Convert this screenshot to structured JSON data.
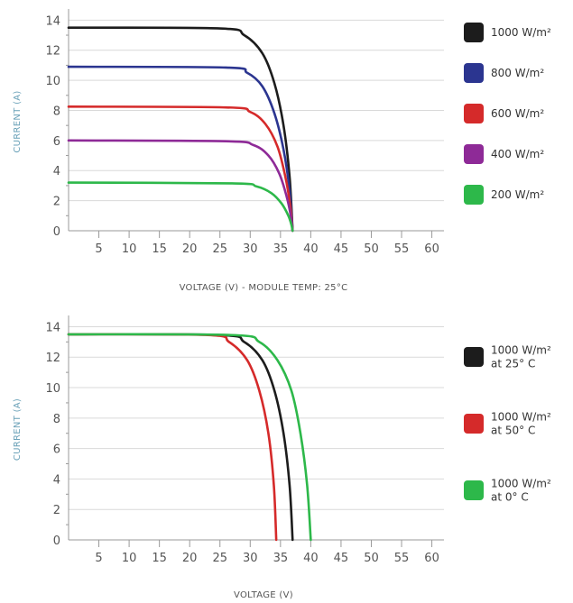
{
  "chart_data": [
    {
      "type": "line",
      "title": "",
      "xlabel": "VOLTAGE (V) - MODULE TEMP: 25°C",
      "ylabel": "CURRENT (A)",
      "xlim": [
        0,
        62
      ],
      "ylim": [
        0,
        14.5
      ],
      "xticks": [
        5,
        10,
        15,
        20,
        25,
        30,
        35,
        40,
        45,
        50,
        55,
        60
      ],
      "yticks": [
        0,
        2,
        4,
        6,
        8,
        10,
        12,
        14
      ],
      "grid": "horizontal",
      "legend_position": "right",
      "series": [
        {
          "name": "1000 W/m²",
          "color": "#1c1c1c",
          "isc": 13.5,
          "voc": 37.0,
          "points": [
            [
              0,
              13.5
            ],
            [
              25,
              13.45
            ],
            [
              29,
              13.0
            ],
            [
              32,
              11.8
            ],
            [
              34,
              9.8
            ],
            [
              35.5,
              7.0
            ],
            [
              36.5,
              3.6
            ],
            [
              37.0,
              0
            ]
          ]
        },
        {
          "name": "800 W/m²",
          "color": "#2b3590",
          "isc": 10.9,
          "voc": 37.0,
          "points": [
            [
              0,
              10.9
            ],
            [
              26,
              10.85
            ],
            [
              29.5,
              10.5
            ],
            [
              32,
              9.6
            ],
            [
              34,
              7.8
            ],
            [
              35.5,
              5.4
            ],
            [
              36.5,
              2.7
            ],
            [
              37.0,
              0
            ]
          ]
        },
        {
          "name": "600 W/m²",
          "color": "#d52a2a",
          "isc": 8.25,
          "voc": 37.0,
          "points": [
            [
              0,
              8.25
            ],
            [
              26,
              8.2
            ],
            [
              30,
              7.9
            ],
            [
              32.5,
              7.1
            ],
            [
              34.5,
              5.6
            ],
            [
              35.8,
              3.6
            ],
            [
              36.6,
              1.7
            ],
            [
              37.0,
              0
            ]
          ]
        },
        {
          "name": "400 W/m²",
          "color": "#8e2a97",
          "isc": 6.0,
          "voc": 37.0,
          "points": [
            [
              0,
              6.0
            ],
            [
              26,
              5.95
            ],
            [
              30.5,
              5.7
            ],
            [
              33,
              5.0
            ],
            [
              34.8,
              3.8
            ],
            [
              36,
              2.3
            ],
            [
              36.7,
              1.0
            ],
            [
              37.0,
              0
            ]
          ]
        },
        {
          "name": "200 W/m²",
          "color": "#2db84a",
          "isc": 3.2,
          "voc": 37.0,
          "points": [
            [
              0,
              3.2
            ],
            [
              27,
              3.15
            ],
            [
              31,
              2.95
            ],
            [
              33.5,
              2.5
            ],
            [
              35.2,
              1.8
            ],
            [
              36.3,
              1.0
            ],
            [
              36.8,
              0.4
            ],
            [
              37.0,
              0
            ]
          ]
        }
      ]
    },
    {
      "type": "line",
      "title": "",
      "xlabel": "VOLTAGE (V)",
      "ylabel": "CURRENT (A)",
      "xlim": [
        0,
        62
      ],
      "ylim": [
        0,
        14.5
      ],
      "xticks": [
        5,
        10,
        15,
        20,
        25,
        30,
        35,
        40,
        45,
        50,
        55,
        60
      ],
      "yticks": [
        0,
        2,
        4,
        6,
        8,
        10,
        12,
        14
      ],
      "grid": "horizontal",
      "legend_position": "right",
      "series": [
        {
          "name": "1000 W/m² at 25° C",
          "lines": [
            "1000 W/m²",
            "at 25° C"
          ],
          "color": "#1c1c1c",
          "isc": 13.5,
          "voc": 37.0,
          "points": [
            [
              0,
              13.5
            ],
            [
              25,
              13.45
            ],
            [
              29,
              13.0
            ],
            [
              32,
              11.8
            ],
            [
              34,
              9.8
            ],
            [
              35.5,
              7.0
            ],
            [
              36.5,
              3.6
            ],
            [
              37.0,
              0
            ]
          ]
        },
        {
          "name": "1000 W/m² at 50° C",
          "lines": [
            "1000 W/m²",
            "at 50° C"
          ],
          "color": "#d52a2a",
          "isc": 13.5,
          "voc": 34.3,
          "points": [
            [
              0,
              13.5
            ],
            [
              23,
              13.45
            ],
            [
              26.5,
              13.0
            ],
            [
              29.5,
              11.8
            ],
            [
              31.5,
              9.8
            ],
            [
              33,
              7.0
            ],
            [
              33.9,
              3.6
            ],
            [
              34.3,
              0
            ]
          ]
        },
        {
          "name": "1000 W/m² at 0° C",
          "lines": [
            "1000 W/m²",
            "at 0° C"
          ],
          "color": "#2db84a",
          "isc": 13.5,
          "voc": 40.0,
          "points": [
            [
              0,
              13.5
            ],
            [
              27,
              13.45
            ],
            [
              31.5,
              13.0
            ],
            [
              34.5,
              11.8
            ],
            [
              36.8,
              9.8
            ],
            [
              38.3,
              7.0
            ],
            [
              39.4,
              3.6
            ],
            [
              40.0,
              0
            ]
          ]
        }
      ]
    }
  ]
}
